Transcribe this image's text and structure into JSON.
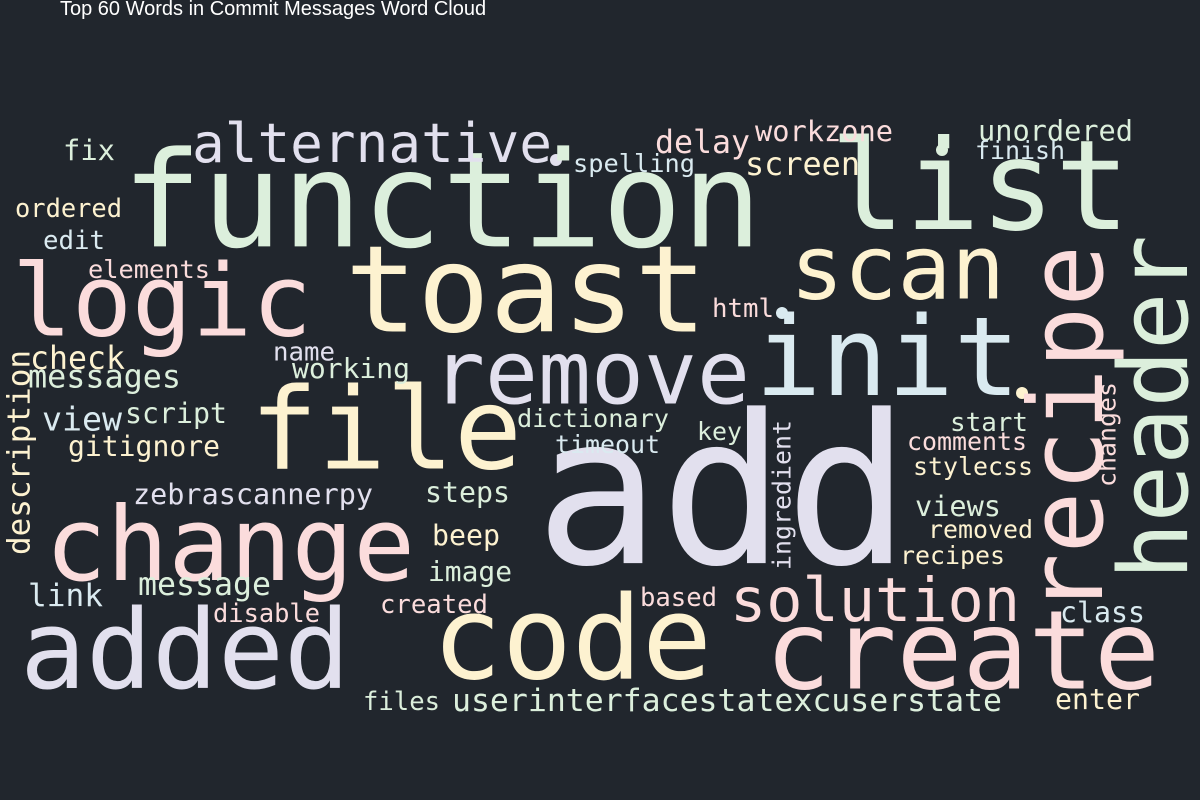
{
  "title": "Top 60 Words in Commit Messages Word Cloud",
  "colors": {
    "background": "#21262d",
    "palette": [
      "#e2e0ee",
      "#dcefdc",
      "#fdf2d0",
      "#fbdcdc",
      "#daeaf0"
    ]
  },
  "chart_data": {
    "type": "word_cloud",
    "title": "Top 60 Words in Commit Messages Word Cloud",
    "word_count": 60,
    "words": [
      {
        "text": "add",
        "weight": 100
      },
      {
        "text": "function",
        "weight": 64
      },
      {
        "text": "list",
        "weight": 60
      },
      {
        "text": "toast",
        "weight": 54
      },
      {
        "text": "logic",
        "weight": 50
      },
      {
        "text": "file",
        "weight": 50
      },
      {
        "text": "init",
        "weight": 50
      },
      {
        "text": "code",
        "weight": 48
      },
      {
        "text": "create",
        "weight": 48
      },
      {
        "text": "change",
        "weight": 47
      },
      {
        "text": "header",
        "weight": 46
      },
      {
        "text": "added",
        "weight": 45
      },
      {
        "text": "remove",
        "weight": 43
      },
      {
        "text": "recipe",
        "weight": 42
      },
      {
        "text": "scan",
        "weight": 38
      },
      {
        "text": "alternative",
        "weight": 28
      },
      {
        "text": "solution",
        "weight": 27
      },
      {
        "text": "userinterfacestatexcuserstate",
        "weight": 15
      },
      {
        "text": "delay",
        "weight": 15
      },
      {
        "text": "screen",
        "weight": 14
      },
      {
        "text": "message",
        "weight": 14
      },
      {
        "text": "unordered",
        "weight": 13
      },
      {
        "text": "check",
        "weight": 13
      },
      {
        "text": "messages",
        "weight": 13
      },
      {
        "text": "workzone",
        "weight": 12
      },
      {
        "text": "dictionary",
        "weight": 12
      },
      {
        "text": "gitignore",
        "weight": 12
      },
      {
        "text": "view",
        "weight": 12
      },
      {
        "text": "zebrascannerpy",
        "weight": 12
      },
      {
        "text": "description",
        "weight": 12
      },
      {
        "text": "ingredient",
        "weight": 11
      },
      {
        "text": "fix",
        "weight": 11
      },
      {
        "text": "script",
        "weight": 11
      },
      {
        "text": "steps",
        "weight": 11
      },
      {
        "text": "beep",
        "weight": 11
      },
      {
        "text": "image",
        "weight": 11
      },
      {
        "text": "link",
        "weight": 11
      },
      {
        "text": "views",
        "weight": 11
      },
      {
        "text": "class",
        "weight": 11
      },
      {
        "text": "enter",
        "weight": 11
      },
      {
        "text": "spelling",
        "weight": 10
      },
      {
        "text": "finish",
        "weight": 10
      },
      {
        "text": "ordered",
        "weight": 10
      },
      {
        "text": "edit",
        "weight": 10
      },
      {
        "text": "elements",
        "weight": 10
      },
      {
        "text": "html",
        "weight": 10
      },
      {
        "text": "working",
        "weight": 10
      },
      {
        "text": "timeout",
        "weight": 10
      },
      {
        "text": "key",
        "weight": 10
      },
      {
        "text": "start",
        "weight": 10
      },
      {
        "text": "comments",
        "weight": 10
      },
      {
        "text": "stylecss",
        "weight": 10
      },
      {
        "text": "removed",
        "weight": 10
      },
      {
        "text": "recipes",
        "weight": 10
      },
      {
        "text": "based",
        "weight": 10
      },
      {
        "text": "created",
        "weight": 10
      },
      {
        "text": "disable",
        "weight": 10
      },
      {
        "text": "files",
        "weight": 10
      },
      {
        "text": "changes",
        "weight": 9
      },
      {
        "text": "name",
        "weight": 9
      }
    ]
  }
}
